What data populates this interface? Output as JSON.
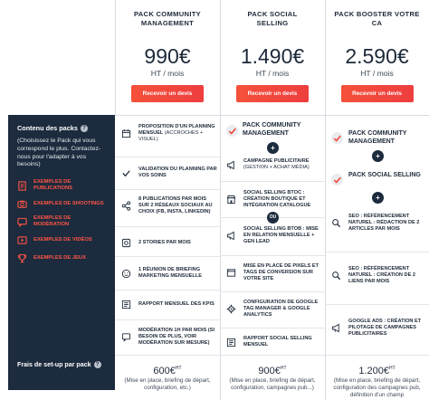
{
  "packs": [
    {
      "title": "PACK COMMUNITY MANAGEMENT",
      "price": "990€",
      "price_sub": "HT / mois",
      "cta": "Recevoir un devis"
    },
    {
      "title": "PACK SOCIAL SELLING",
      "price": "1.490€",
      "price_sub": "HT / mois",
      "cta": "Recevoir un devis"
    },
    {
      "title": "PACK BOOSTER VOTRE CA",
      "price": "2.590€",
      "price_sub": "HT / mois",
      "cta": "Recevoir un devis"
    }
  ],
  "sidebar": {
    "title": "Contenu des packs",
    "description": "(Choisissez le Pack qui vous correspond le plus. Contactez-nous pour l'adapter à vos besoins)",
    "links": [
      {
        "label": "EXEMPLES DE PUBLICATIONS",
        "icon": "document-icon"
      },
      {
        "label": "EXEMPLES DE SHOOTINGS",
        "icon": "camera-icon"
      },
      {
        "label": "EXEMPLES DE MODÉRATION",
        "icon": "chat-icon"
      },
      {
        "label": "EXEMPLES DE VIDÉOS",
        "icon": "video-icon"
      },
      {
        "label": "EXEMPLES DE JEUX",
        "icon": "trophy-icon"
      }
    ],
    "setup_label": "Frais de set-up par pack"
  },
  "col1": {
    "features": [
      {
        "text": "PROPOSITION D'UN PLANNING MENSUEL",
        "sub": "(ACCROCHES + VISUEL)",
        "icon": "calendar-icon"
      },
      {
        "text": "VALIDATION DU PLANNING PAR VOS SOINS",
        "sub": "",
        "icon": "check-icon"
      },
      {
        "text": "8 PUBLICATIONS PAR MOIS SUR 2 RÉSEAUX SOCIAUX AU CHOIX (FB, INSTA, LINKEDIN)",
        "sub": "",
        "icon": "share-icon"
      },
      {
        "text": "2 STORIES PAR MOIS",
        "sub": "",
        "icon": "stories-icon"
      },
      {
        "text": "1 RÉUNION DE BRIEFING MARKETING MENSUELLE",
        "sub": "",
        "icon": "smiley-icon"
      },
      {
        "text": "RAPPORT MENSUEL DES KPIS",
        "sub": "",
        "icon": "report-icon"
      },
      {
        "text": "MODÉRATION 1H PAR MOIS (SI BESOIN DE PLUS, VOIR MODÉRATION SUR MESURE)",
        "sub": "",
        "icon": "moderation-icon"
      }
    ],
    "setup_price": "600€",
    "setup_ht": "HT",
    "setup_desc": "(Mise en place, briefing de départ, configuration, etc.)"
  },
  "col2": {
    "included_pack": "PACK COMMUNITY MANAGEMENT",
    "plus": "+",
    "ou": "OU",
    "features": [
      {
        "text": "CAMPAGNE PUBLICITAIRE",
        "sub": "(GESTION + ACHAT MÉDIA)",
        "icon": "megaphone-icon"
      },
      {
        "text": "SOCIAL SELLING BTOC : CRÉATION BOUTIQUE ET INTÉGRATION CATALOGUE",
        "sub": "",
        "icon": "shop-icon"
      },
      {
        "text": "SOCIAL SELLING BTOB : MISE EN RELATION MENSUELLE + GEN LEAD",
        "sub": "",
        "icon": "megaphone-icon"
      },
      {
        "text": "MISE EN PLACE DE PIXELS ET TAGS DE CONVERSION SUR VOTRE SITE",
        "sub": "",
        "icon": "browser-icon"
      },
      {
        "text": "CONFIGURATION DE GOOGLE TAG MANAGER & GOOGLE ANALYTICS",
        "sub": "",
        "icon": "gear-icon"
      },
      {
        "text": "RAPPORT SOCIAL SELLING MENSUEL",
        "sub": "",
        "icon": "report-icon"
      }
    ],
    "setup_price": "900€",
    "setup_ht": "HT",
    "setup_desc": "(Mise en place, briefing de départ, configuration, campagnes pub...)"
  },
  "col3": {
    "included_packs": [
      "PACK COMMUNITY MANAGEMENT",
      "PACK SOCIAL SELLING"
    ],
    "plus": "+",
    "features": [
      {
        "text": "SEO : RÉFÉRENCEMENT NATUREL : RÉDACTION DE 2 ARTICLES PAR MOIS",
        "sub": "",
        "icon": "seo-icon"
      },
      {
        "text": "SEO : RÉFÉRENCEMENT NATUREL : CRÉATION DE 2 LIENS PAR MOIS",
        "sub": "",
        "icon": "seo-icon"
      },
      {
        "text": "GOOGLE ADS : CRÉATION ET PILOTAGE DE CAMPAGNES PUBLICITAIRES",
        "sub": "",
        "icon": "megaphone-icon"
      }
    ],
    "setup_price": "1.200€",
    "setup_ht": "HT",
    "setup_desc": "(Mise en place, briefing de départ, configuration des campagnes pub, définition d'un champ"
  },
  "colors": {
    "accent": "#f04a3e",
    "navy": "#1c2b3d",
    "border": "#d7dce2"
  }
}
